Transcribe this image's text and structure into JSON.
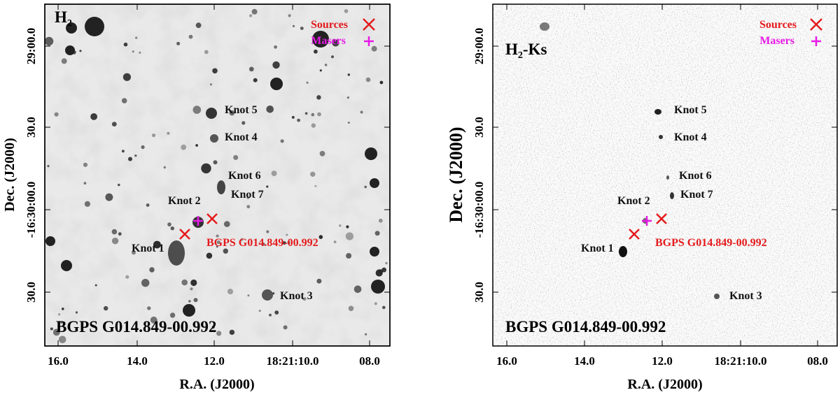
{
  "left_panel": {
    "filter_label": "H",
    "filter_sub": "2",
    "field_name": "BGPS G014.849-00.992",
    "ylabel": "Dec. (J2000)",
    "xlabel": "R.A. (J2000)"
  },
  "right_panel": {
    "filter_label": "H",
    "filter_sub": "2",
    "filter_suffix": "-Ks",
    "field_name": "BGPS G014.849-00.992",
    "ylabel": "Dec. (J2000)",
    "xlabel": "R.A. (J2000)"
  },
  "legend": {
    "sources": "Sources",
    "masers": "Masers",
    "source_color": "#e41a1c",
    "maser_color": "#e61ae6"
  },
  "source_label": "BGPS G014.849-00.992",
  "knots": {
    "k1": "Knot 1",
    "k2": "Knot 2",
    "k3": "Knot 3",
    "k4": "Knot 4",
    "k5": "Knot 5",
    "k6": "Knot 6",
    "k7": "Knot 7"
  },
  "x_ticks": [
    "16.0",
    "14.0",
    "12.0",
    "18:21:10.0",
    "08.0"
  ],
  "y_ticks": [
    "29:00.0",
    "30.0",
    "-16:30:00.0",
    "-16:30:30.0",
    "30.0"
  ],
  "icons": {
    "source_marker": "x-cross-icon",
    "maser_marker": "plus-icon"
  }
}
